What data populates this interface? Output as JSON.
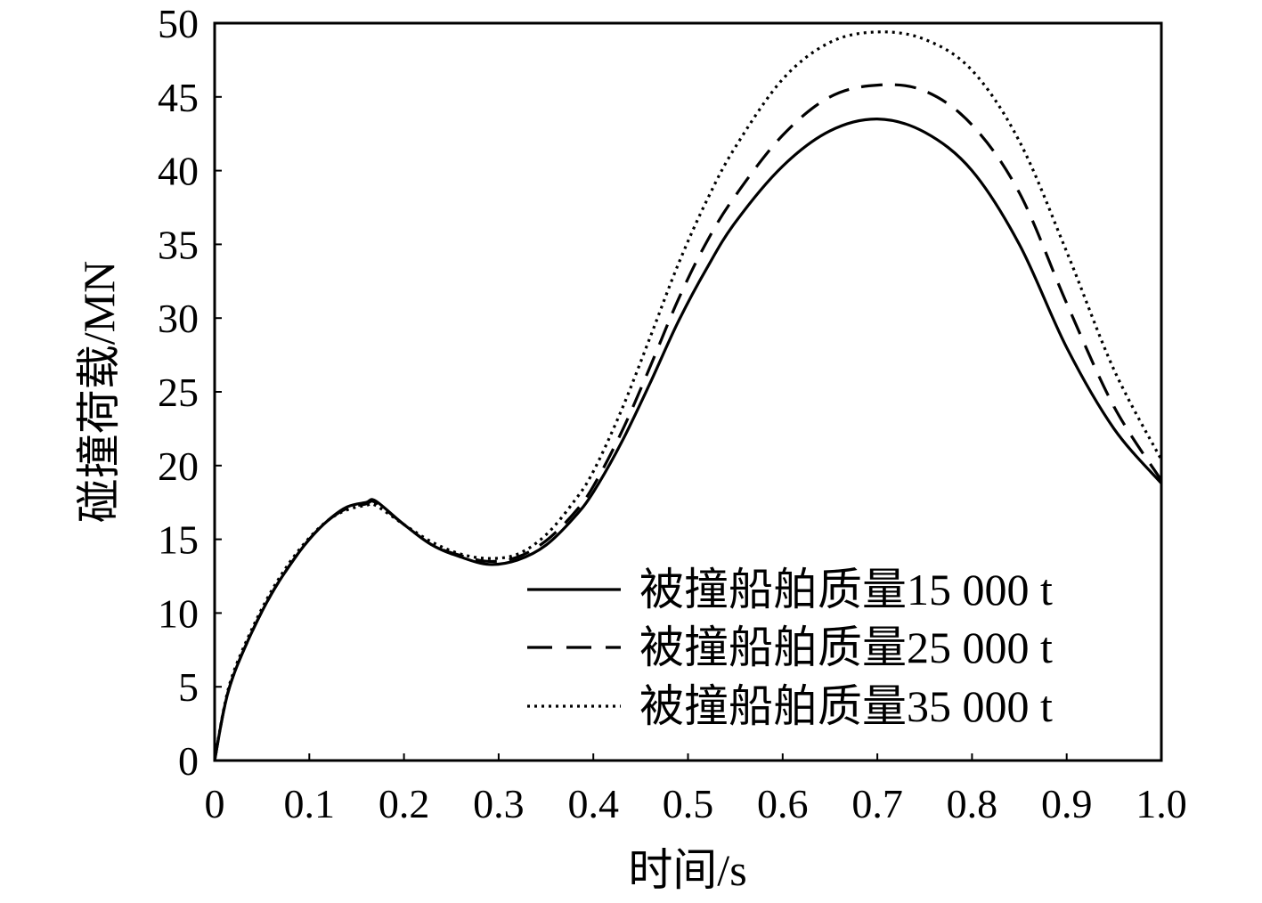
{
  "chart_data": {
    "type": "line",
    "xlabel": "时间/s",
    "ylabel": "碰撞荷载/MN",
    "xlim": [
      0,
      1.0
    ],
    "ylim": [
      0,
      50
    ],
    "x_ticks": [
      "0",
      "0.1",
      "0.2",
      "0.3",
      "0.4",
      "0.5",
      "0.6",
      "0.7",
      "0.8",
      "0.9",
      "1.0"
    ],
    "y_ticks": [
      "0",
      "5",
      "10",
      "15",
      "20",
      "25",
      "30",
      "35",
      "40",
      "45",
      "50"
    ],
    "grid": false,
    "legend_position": "bottom-right",
    "series": [
      {
        "name": "被撞船舶质量15 000 t",
        "style": "solid",
        "color": "#000000",
        "points": [
          [
            0,
            0
          ],
          [
            0.01,
            3.5
          ],
          [
            0.02,
            5.8
          ],
          [
            0.04,
            8.8
          ],
          [
            0.06,
            11.3
          ],
          [
            0.08,
            13.3
          ],
          [
            0.1,
            15.0
          ],
          [
            0.12,
            16.3
          ],
          [
            0.14,
            17.2
          ],
          [
            0.16,
            17.5
          ],
          [
            0.17,
            17.6
          ],
          [
            0.2,
            16.0
          ],
          [
            0.23,
            14.6
          ],
          [
            0.26,
            13.8
          ],
          [
            0.29,
            13.3
          ],
          [
            0.32,
            13.6
          ],
          [
            0.35,
            14.6
          ],
          [
            0.38,
            16.5
          ],
          [
            0.4,
            18.2
          ],
          [
            0.43,
            21.6
          ],
          [
            0.46,
            25.6
          ],
          [
            0.49,
            29.8
          ],
          [
            0.52,
            33.4
          ],
          [
            0.55,
            36.5
          ],
          [
            0.6,
            40.3
          ],
          [
            0.65,
            42.7
          ],
          [
            0.7,
            43.5
          ],
          [
            0.75,
            42.6
          ],
          [
            0.8,
            40.0
          ],
          [
            0.85,
            35.0
          ],
          [
            0.9,
            28.0
          ],
          [
            0.95,
            22.5
          ],
          [
            1.0,
            18.8
          ]
        ]
      },
      {
        "name": "被撞船舶质量25 000 t",
        "style": "dashed",
        "color": "#000000",
        "points": [
          [
            0,
            0
          ],
          [
            0.01,
            3.5
          ],
          [
            0.02,
            5.8
          ],
          [
            0.04,
            8.8
          ],
          [
            0.06,
            11.3
          ],
          [
            0.08,
            13.3
          ],
          [
            0.1,
            15.0
          ],
          [
            0.12,
            16.3
          ],
          [
            0.14,
            17.1
          ],
          [
            0.16,
            17.4
          ],
          [
            0.17,
            17.5
          ],
          [
            0.2,
            16.0
          ],
          [
            0.23,
            14.6
          ],
          [
            0.26,
            13.9
          ],
          [
            0.29,
            13.5
          ],
          [
            0.32,
            13.8
          ],
          [
            0.35,
            14.9
          ],
          [
            0.38,
            16.8
          ],
          [
            0.4,
            18.6
          ],
          [
            0.43,
            22.3
          ],
          [
            0.46,
            26.7
          ],
          [
            0.49,
            31.3
          ],
          [
            0.52,
            35.2
          ],
          [
            0.55,
            38.3
          ],
          [
            0.6,
            42.4
          ],
          [
            0.65,
            45.0
          ],
          [
            0.7,
            45.8
          ],
          [
            0.75,
            45.4
          ],
          [
            0.8,
            43.1
          ],
          [
            0.85,
            38.5
          ],
          [
            0.9,
            31.0
          ],
          [
            0.95,
            24.0
          ],
          [
            1.0,
            19.0
          ]
        ]
      },
      {
        "name": "被撞船舶质量35 000 t",
        "style": "dotted",
        "color": "#000000",
        "points": [
          [
            0,
            0
          ],
          [
            0.01,
            3.6
          ],
          [
            0.02,
            6.0
          ],
          [
            0.04,
            9.0
          ],
          [
            0.06,
            11.5
          ],
          [
            0.08,
            13.5
          ],
          [
            0.1,
            15.1
          ],
          [
            0.12,
            16.3
          ],
          [
            0.14,
            17.0
          ],
          [
            0.16,
            17.3
          ],
          [
            0.17,
            17.3
          ],
          [
            0.2,
            16.0
          ],
          [
            0.23,
            14.8
          ],
          [
            0.26,
            14.0
          ],
          [
            0.29,
            13.7
          ],
          [
            0.32,
            14.0
          ],
          [
            0.35,
            15.3
          ],
          [
            0.38,
            17.6
          ],
          [
            0.4,
            19.6
          ],
          [
            0.43,
            23.8
          ],
          [
            0.46,
            28.7
          ],
          [
            0.49,
            33.7
          ],
          [
            0.52,
            38.0
          ],
          [
            0.55,
            41.6
          ],
          [
            0.6,
            46.2
          ],
          [
            0.65,
            48.7
          ],
          [
            0.7,
            49.4
          ],
          [
            0.75,
            48.9
          ],
          [
            0.8,
            46.8
          ],
          [
            0.85,
            42.0
          ],
          [
            0.9,
            34.5
          ],
          [
            0.95,
            26.5
          ],
          [
            1.0,
            20.4
          ]
        ]
      }
    ]
  }
}
